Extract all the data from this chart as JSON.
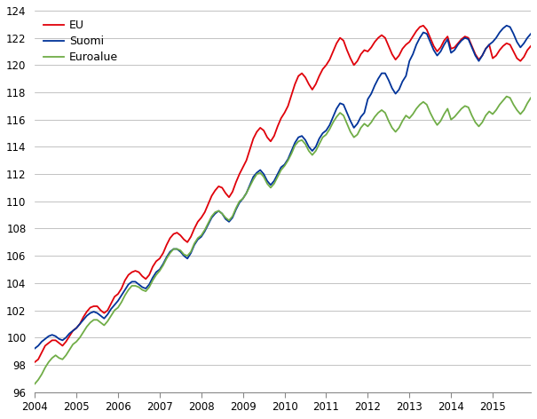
{
  "ylim": [
    96,
    124
  ],
  "yticks": [
    96,
    98,
    100,
    102,
    104,
    106,
    108,
    110,
    112,
    114,
    116,
    118,
    120,
    122,
    124
  ],
  "colors": {
    "EU": "#e0000a",
    "Suomi": "#003399",
    "Euroalue": "#70ad47"
  },
  "background_color": "#ffffff",
  "grid_color": "#aaaaaa",
  "start_year": 2004,
  "start_month": 1,
  "n_months": 144,
  "EU": [
    98.2,
    98.4,
    98.9,
    99.4,
    99.6,
    99.8,
    99.8,
    99.6,
    99.4,
    99.7,
    100.1,
    100.5,
    100.7,
    101.0,
    101.5,
    101.9,
    102.2,
    102.3,
    102.3,
    102.0,
    101.8,
    102.0,
    102.5,
    103.0,
    103.2,
    103.6,
    104.2,
    104.6,
    104.8,
    104.9,
    104.8,
    104.5,
    104.3,
    104.6,
    105.2,
    105.6,
    105.8,
    106.2,
    106.8,
    107.3,
    107.6,
    107.7,
    107.5,
    107.2,
    107.0,
    107.4,
    108.0,
    108.5,
    108.8,
    109.2,
    109.8,
    110.4,
    110.8,
    111.1,
    111.0,
    110.6,
    110.3,
    110.7,
    111.4,
    112.0,
    112.5,
    113.0,
    113.8,
    114.6,
    115.1,
    115.4,
    115.2,
    114.7,
    114.4,
    114.8,
    115.5,
    116.1,
    116.5,
    117.0,
    117.8,
    118.6,
    119.2,
    119.4,
    119.1,
    118.6,
    118.2,
    118.6,
    119.2,
    119.7,
    120.0,
    120.4,
    121.0,
    121.6,
    122.0,
    121.8,
    121.1,
    120.5,
    120.0,
    120.3,
    120.8,
    121.1,
    121.0,
    121.3,
    121.7,
    122.0,
    122.2,
    122.0,
    121.4,
    120.8,
    120.4,
    120.7,
    121.2,
    121.5,
    121.7,
    122.1,
    122.5,
    122.8,
    122.9,
    122.6,
    122.0,
    121.4,
    121.0,
    121.3,
    121.8,
    122.1,
    121.2,
    121.3,
    121.6,
    121.9,
    122.1,
    122.0,
    121.4,
    120.8,
    120.4,
    120.7,
    121.2,
    121.5,
    120.5,
    120.7,
    121.1,
    121.4,
    121.6,
    121.5,
    121.0,
    120.5,
    120.3,
    120.6,
    121.1,
    121.4
  ],
  "Suomi": [
    99.2,
    99.4,
    99.7,
    99.9,
    100.1,
    100.2,
    100.1,
    99.9,
    99.8,
    100.0,
    100.3,
    100.5,
    100.7,
    101.0,
    101.3,
    101.6,
    101.8,
    101.9,
    101.8,
    101.6,
    101.4,
    101.7,
    102.1,
    102.4,
    102.7,
    103.1,
    103.5,
    103.9,
    104.1,
    104.1,
    103.9,
    103.7,
    103.6,
    103.9,
    104.4,
    104.8,
    105.0,
    105.4,
    105.9,
    106.3,
    106.5,
    106.5,
    106.3,
    106.0,
    105.8,
    106.2,
    106.8,
    107.2,
    107.4,
    107.8,
    108.3,
    108.8,
    109.1,
    109.3,
    109.1,
    108.7,
    108.5,
    108.8,
    109.4,
    109.9,
    110.2,
    110.6,
    111.2,
    111.8,
    112.1,
    112.3,
    112.0,
    111.5,
    111.2,
    111.5,
    112.0,
    112.5,
    112.7,
    113.1,
    113.7,
    114.3,
    114.7,
    114.8,
    114.5,
    114.0,
    113.7,
    114.0,
    114.6,
    115.0,
    115.2,
    115.6,
    116.2,
    116.8,
    117.2,
    117.1,
    116.5,
    115.9,
    115.4,
    115.7,
    116.2,
    116.5,
    117.5,
    117.9,
    118.5,
    119.0,
    119.4,
    119.4,
    118.9,
    118.3,
    117.9,
    118.2,
    118.8,
    119.2,
    120.3,
    120.8,
    121.5,
    122.0,
    122.4,
    122.3,
    121.7,
    121.1,
    120.7,
    121.0,
    121.5,
    121.9,
    120.9,
    121.1,
    121.5,
    121.8,
    122.0,
    121.9,
    121.3,
    120.7,
    120.3,
    120.7,
    121.2,
    121.5,
    121.7,
    122.0,
    122.4,
    122.7,
    122.9,
    122.8,
    122.3,
    121.7,
    121.3,
    121.6,
    122.0,
    122.3
  ],
  "Euroalue": [
    96.6,
    96.9,
    97.3,
    97.8,
    98.2,
    98.5,
    98.7,
    98.5,
    98.4,
    98.7,
    99.1,
    99.5,
    99.7,
    100.0,
    100.4,
    100.8,
    101.1,
    101.3,
    101.3,
    101.1,
    100.9,
    101.2,
    101.6,
    102.0,
    102.2,
    102.6,
    103.1,
    103.5,
    103.8,
    103.8,
    103.7,
    103.5,
    103.4,
    103.7,
    104.2,
    104.6,
    104.9,
    105.3,
    105.8,
    106.2,
    106.5,
    106.5,
    106.4,
    106.1,
    106.0,
    106.3,
    106.9,
    107.3,
    107.5,
    107.9,
    108.4,
    108.9,
    109.2,
    109.3,
    109.1,
    108.8,
    108.6,
    108.9,
    109.5,
    110.0,
    110.2,
    110.6,
    111.1,
    111.6,
    112.0,
    112.1,
    111.8,
    111.3,
    111.0,
    111.3,
    111.8,
    112.3,
    112.6,
    113.0,
    113.5,
    114.1,
    114.4,
    114.5,
    114.2,
    113.7,
    113.4,
    113.7,
    114.2,
    114.7,
    114.9,
    115.3,
    115.8,
    116.2,
    116.5,
    116.3,
    115.7,
    115.1,
    114.7,
    114.9,
    115.4,
    115.7,
    115.5,
    115.8,
    116.2,
    116.5,
    116.7,
    116.5,
    115.9,
    115.4,
    115.1,
    115.4,
    115.9,
    116.3,
    116.1,
    116.4,
    116.8,
    117.1,
    117.3,
    117.1,
    116.5,
    116.0,
    115.6,
    115.9,
    116.4,
    116.8,
    116.0,
    116.2,
    116.5,
    116.8,
    117.0,
    116.9,
    116.3,
    115.8,
    115.5,
    115.8,
    116.3,
    116.6,
    116.4,
    116.7,
    117.1,
    117.4,
    117.7,
    117.6,
    117.1,
    116.7,
    116.4,
    116.7,
    117.2,
    117.6
  ]
}
